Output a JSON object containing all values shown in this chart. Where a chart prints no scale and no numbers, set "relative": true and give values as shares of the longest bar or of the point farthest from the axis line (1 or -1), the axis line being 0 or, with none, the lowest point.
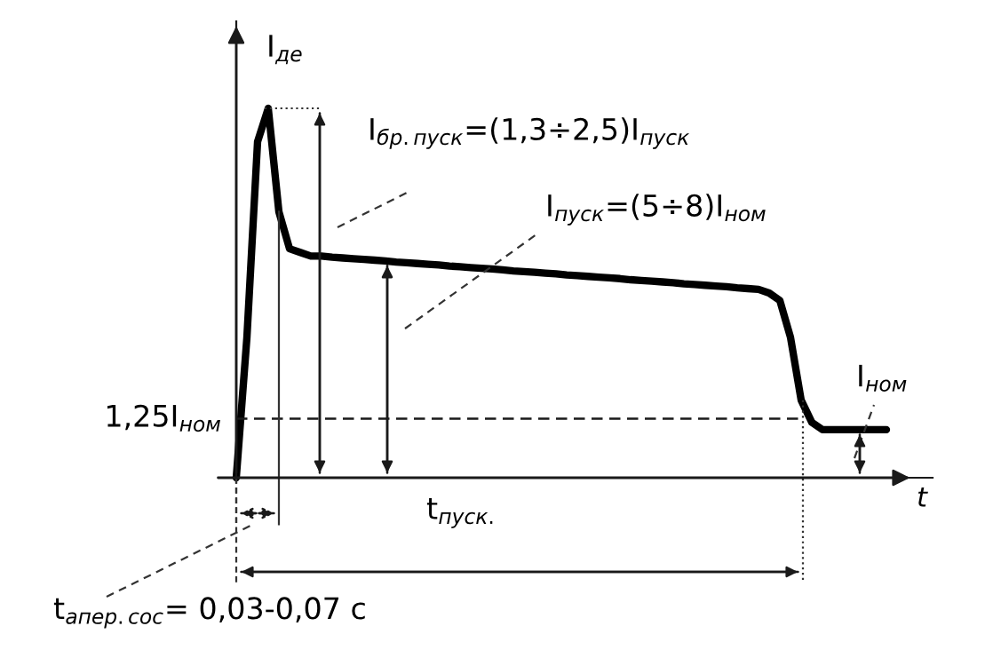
{
  "chart_data": {
    "type": "line",
    "relative": true,
    "xlabel": "t",
    "categories": [
      null,
      null,
      null,
      null,
      null,
      null,
      null,
      null,
      null,
      null,
      null,
      null,
      null,
      null,
      null,
      null,
      null,
      null,
      null,
      null,
      null,
      null,
      null,
      null,
      null,
      null,
      null,
      null,
      null,
      null,
      null,
      null,
      null,
      null,
      null,
      null,
      null,
      null,
      null,
      null,
      null,
      null,
      null,
      null,
      null,
      null,
      null,
      null,
      null,
      null,
      null,
      null,
      null,
      null,
      null,
      null,
      null,
      null,
      null,
      null,
      null,
      null
    ],
    "series": [
      {
        "color": "#000000",
        "values": [
          0,
          0.38,
          0.91,
          1,
          0.72,
          0.62,
          0.61,
          0.6,
          0.6,
          0.597,
          0.595,
          0.593,
          0.591,
          0.589,
          0.587,
          0.584,
          0.582,
          0.58,
          0.578,
          0.576,
          0.573,
          0.571,
          0.569,
          0.567,
          0.565,
          0.563,
          0.56,
          0.558,
          0.556,
          0.554,
          0.552,
          0.549,
          0.547,
          0.545,
          0.543,
          0.541,
          0.539,
          0.536,
          0.534,
          0.532,
          0.53,
          0.528,
          0.525,
          0.523,
          0.521,
          0.519,
          0.517,
          0.514,
          0.512,
          0.51,
          0.5,
          0.48,
          0.38,
          0.21,
          0.15,
          0.13,
          0.13,
          0.13,
          0.13,
          0.13,
          0.13,
          0.13
        ]
      }
    ],
    "ref_lines": [
      {
        "axis": "y",
        "value": 0.16,
        "label": "1,25I$_{ном}$",
        "line_style": "dashed"
      }
    ],
    "annotations": [
      "I$_{бр.пуск}$=(1,3÷2,5)I$_{пуск}$",
      "I$_{пуск}$=(5÷8)I$_{ном}$",
      "I$_{ном}$",
      "t$_{пуск.}$",
      "t$_{апер.сос}$= 0,03-0,07 с",
      "I$_{де}$"
    ]
  }
}
